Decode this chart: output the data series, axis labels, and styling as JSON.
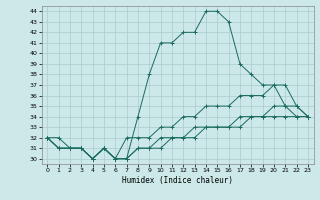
{
  "xlabel": "Humidex (Indice chaleur)",
  "xlim": [
    -0.5,
    23.5
  ],
  "ylim": [
    29.5,
    44.5
  ],
  "xticks": [
    0,
    1,
    2,
    3,
    4,
    5,
    6,
    7,
    8,
    9,
    10,
    11,
    12,
    13,
    14,
    15,
    16,
    17,
    18,
    19,
    20,
    21,
    22,
    23
  ],
  "yticks": [
    30,
    31,
    32,
    33,
    34,
    35,
    36,
    37,
    38,
    39,
    40,
    41,
    42,
    43,
    44
  ],
  "bg_color": "#cce8e8",
  "line_color": "#1a6b5e",
  "grid_color": "#aacccc",
  "lines": [
    [
      32,
      32,
      31,
      31,
      30,
      31,
      30,
      30,
      34,
      38,
      41,
      41,
      42,
      42,
      44,
      44,
      43,
      39,
      38,
      37,
      37,
      35,
      35,
      34
    ],
    [
      32,
      31,
      31,
      31,
      30,
      31,
      30,
      32,
      32,
      32,
      33,
      33,
      34,
      34,
      35,
      35,
      35,
      36,
      36,
      36,
      37,
      37,
      35,
      34
    ],
    [
      32,
      31,
      31,
      31,
      30,
      31,
      30,
      30,
      31,
      31,
      32,
      32,
      32,
      33,
      33,
      33,
      33,
      34,
      34,
      34,
      35,
      35,
      34,
      34
    ],
    [
      32,
      31,
      31,
      31,
      30,
      31,
      30,
      30,
      31,
      31,
      31,
      32,
      32,
      32,
      33,
      33,
      33,
      33,
      34,
      34,
      34,
      34,
      34,
      34
    ]
  ]
}
